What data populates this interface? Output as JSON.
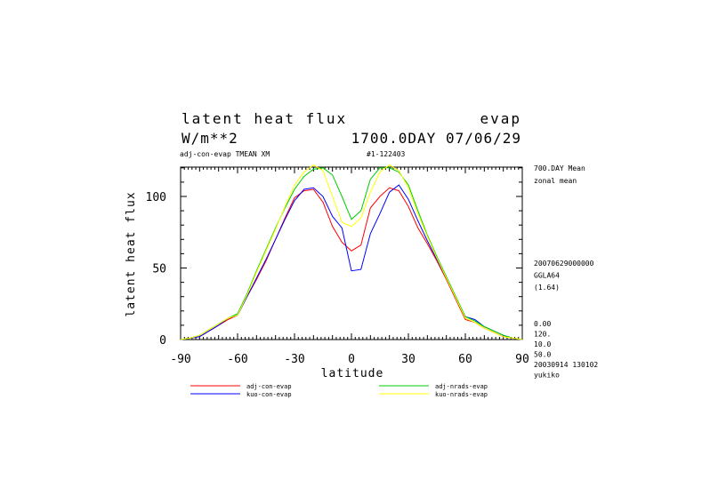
{
  "header": {
    "title_left": "latent heat flux",
    "title_right": "evap",
    "units": "W/m**2",
    "date": "1700.0DAY 07/06/29",
    "subtitle_left": "adj-con-evap TMEAN XM",
    "subtitle_right": "#1-122403"
  },
  "side_info": {
    "lines_top": [
      "700.DAY Mean",
      "zonal mean"
    ],
    "lines_mid": [
      "20070629000000",
      "GGLA64",
      "(1.64)"
    ],
    "lines_bottom": [
      "0.00",
      "120.",
      "10.0",
      "50.0",
      "20030914 130102",
      "yukiko"
    ]
  },
  "chart_data": {
    "type": "line",
    "xlabel": "latitude",
    "ylabel": "latent heat flux",
    "xlim": [
      -90,
      90
    ],
    "ylim": [
      0,
      125
    ],
    "x_ticks": [
      -90,
      -60,
      -30,
      0,
      30,
      60,
      90
    ],
    "x_tick_labels": [
      "-90",
      "-60",
      "-30",
      "0",
      "30",
      "60",
      "90"
    ],
    "y_ticks": [
      0,
      50,
      100
    ],
    "y_tick_labels": [
      "0",
      "50",
      "100"
    ],
    "legend_placement": "bottom",
    "x": [
      -90,
      -85,
      -80,
      -75,
      -70,
      -65,
      -60,
      -55,
      -50,
      -45,
      -40,
      -35,
      -30,
      -25,
      -20,
      -15,
      -10,
      -5,
      0,
      5,
      10,
      15,
      20,
      25,
      30,
      35,
      40,
      45,
      50,
      55,
      60,
      65,
      70,
      75,
      80,
      85,
      90
    ],
    "series": [
      {
        "name": "adj-con-evap",
        "color": "#ff0000",
        "values": [
          0,
          1,
          2,
          6,
          10,
          14,
          17,
          30,
          42,
          55,
          70,
          85,
          99,
          104,
          105,
          96,
          79,
          68,
          62,
          66,
          92,
          100,
          106,
          104,
          93,
          78,
          67,
          55,
          42,
          28,
          14,
          12,
          8,
          5,
          2,
          1,
          0
        ]
      },
      {
        "name": "kuo-con-evap",
        "color": "#0000ff",
        "values": [
          0,
          1,
          2,
          6,
          10,
          15,
          17,
          30,
          43,
          56,
          70,
          84,
          97,
          105,
          106,
          100,
          86,
          78,
          48,
          49,
          74,
          88,
          103,
          108,
          98,
          83,
          69,
          56,
          43,
          29,
          16,
          14,
          9,
          6,
          3,
          1,
          0
        ]
      },
      {
        "name": "adj-nrads-evap",
        "color": "#00cc00",
        "values": [
          0,
          1,
          3,
          7,
          11,
          15,
          18,
          32,
          48,
          63,
          78,
          92,
          105,
          114,
          119,
          120,
          115,
          100,
          84,
          90,
          112,
          120,
          120,
          117,
          108,
          90,
          73,
          58,
          44,
          30,
          16,
          13,
          9,
          6,
          3,
          1,
          0
        ]
      },
      {
        "name": "kuo-nrads-evap",
        "color": "#ffff00",
        "values": [
          0,
          1,
          3,
          7,
          11,
          15,
          17,
          31,
          47,
          62,
          77,
          93,
          108,
          117,
          122,
          118,
          100,
          82,
          79,
          85,
          103,
          117,
          122,
          118,
          106,
          88,
          72,
          57,
          43,
          29,
          15,
          12,
          8,
          5,
          2,
          1,
          0
        ]
      }
    ]
  }
}
